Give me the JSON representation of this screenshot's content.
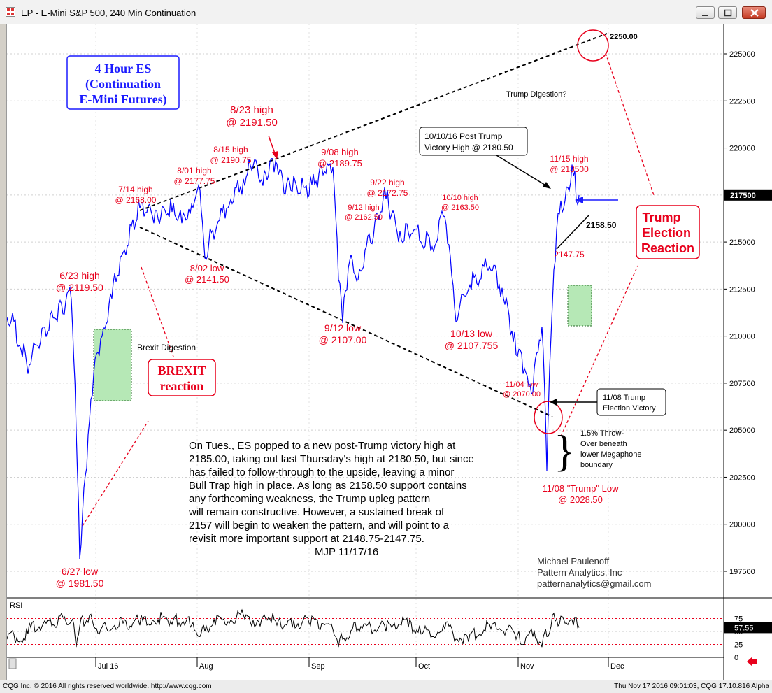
{
  "window": {
    "title": "EP - E-Mini S&P 500, 240 Min Continuation"
  },
  "status": {
    "left": "CQG Inc. © 2016 All rights reserved worldwide. http://www.cqg.com",
    "right": "Thu Nov 17 2016 09:01:03, CQG 17.10.816 Alpha"
  },
  "colors": {
    "price_line": "#0000ff",
    "annotation_red": "#e8001c",
    "rsi_line": "#000000",
    "highlight_box": "#b6e8b6"
  },
  "chart_data": [
    {
      "type": "line",
      "price_axis": {
        "ticks": [
          "197500",
          "200000",
          "202500",
          "205000",
          "207500",
          "210000",
          "212500",
          "215000",
          "217500",
          "220000",
          "222500",
          "225000"
        ],
        "last_price": "217500",
        "ylim": [
          1955,
          2270
        ]
      },
      "x_axis": {
        "labels": [
          "Jul 16",
          "Aug",
          "Sep",
          "Oct",
          "Nov",
          "Dec"
        ]
      },
      "series": [
        {
          "x": [
            "6/06",
            "6/13",
            "6/17",
            "6/20",
            "6/23",
            "6/24",
            "6/27",
            "6/29",
            "7/01",
            "7/05",
            "7/08",
            "7/14",
            "7/18",
            "7/21",
            "7/26",
            "7/29",
            "8/01",
            "8/02",
            "8/04",
            "8/09",
            "8/12",
            "8/15",
            "8/17",
            "8/19",
            "8/23",
            "8/25",
            "8/29",
            "9/02",
            "9/08",
            "9/09",
            "9/12",
            "9/14",
            "9/19",
            "9/22",
            "9/26",
            "9/29",
            "10/03",
            "10/06",
            "10/10",
            "10/13",
            "10/17",
            "10/20",
            "10/25",
            "10/28",
            "11/01",
            "11/03",
            "11/04",
            "11/07",
            "11/08",
            "11/09",
            "11/10",
            "11/11",
            "11/14",
            "11/15",
            "11/16",
            "11/17"
          ],
          "values": [
            2110,
            2095,
            2080,
            2095,
            2119.5,
            2050,
            1981.5,
            2030,
            2080,
            2090,
            2120,
            2168,
            2160,
            2166,
            2160,
            2165,
            2177.75,
            2141.5,
            2155,
            2170,
            2180,
            2190.75,
            2182,
            2183,
            2191.5,
            2176,
            2177,
            2175,
            2189.75,
            2130,
            2107,
            2140,
            2130,
            2172.75,
            2150,
            2155,
            2150,
            2145,
            2163.5,
            2107.755,
            2125,
            2130,
            2135,
            2120,
            2090,
            2080,
            2070,
            2105,
            2028.5,
            2100,
            2140,
            2165,
            2172,
            2185,
            2170,
            2175
          ]
        }
      ],
      "annotations": [
        {
          "lines": [
            "6/23 high",
            "@ 2119.50"
          ]
        },
        {
          "lines": [
            "6/27 low",
            "@ 1981.50"
          ]
        },
        {
          "lines": [
            "7/14 high",
            "@ 2168.00"
          ]
        },
        {
          "lines": [
            "8/01 high",
            "@ 2177.75"
          ]
        },
        {
          "lines": [
            "8/15 high",
            "@ 2190.75"
          ]
        },
        {
          "lines": [
            "8/23 high",
            "@ 2191.50"
          ]
        },
        {
          "lines": [
            "9/08 high",
            "@ 2189.75"
          ]
        },
        {
          "lines": [
            "9/22 high",
            "@ 2172.75"
          ]
        },
        {
          "lines": [
            "9/12 high",
            "@ 2162.50"
          ]
        },
        {
          "lines": [
            "10/10 high",
            "@ 2163.50"
          ]
        },
        {
          "lines": [
            "8/02 low",
            "@ 2141.50"
          ]
        },
        {
          "lines": [
            "9/12 low",
            "@ 2107.00"
          ]
        },
        {
          "lines": [
            "10/13 low",
            "@ 2107.755"
          ]
        },
        {
          "lines": [
            "11/04 low",
            "@ 2070.00"
          ]
        },
        {
          "lines": [
            "11/15 high",
            "@ 218500"
          ]
        },
        {
          "lines": [
            "2147.75"
          ]
        },
        {
          "lines": [
            "11/08 \"Trump\" Low",
            "@ 2028.50"
          ]
        }
      ],
      "labels": {
        "title_box": [
          "4 Hour ES",
          "(Continuation",
          "E-Mini Futures)"
        ],
        "brexit_digestion": "Brexit Digestion",
        "brexit_reaction": [
          "BREXIT",
          "reaction"
        ],
        "trump_digestion": "Trump Digestion?",
        "trump_reaction": [
          "Trump",
          "Election",
          "Reaction"
        ],
        "victory_high_box": [
          "10/10/16 Post Trump",
          "Victory High @ 2180.50"
        ],
        "election_box": [
          "11/08 Trump",
          "Election Victory"
        ],
        "target_2250": "2250.00",
        "support_2158": "2158.50",
        "throw_over": [
          "1.5% Throw-",
          "Over beneath",
          "lower Megaphone",
          "boundary"
        ],
        "commentary": [
          "On Tues., ES popped to a new post-Trump victory high at",
          "2185.00, taking out last Thursday's high at 2180.50, but since",
          "has failed to follow-through to the upside, leaving a minor",
          "Bull Trap high in place. As long as 2158.50 support contains",
          "any forthcoming weakness, the Trump upleg pattern",
          "will remain constructive. However, a sustained break of",
          "2157 will begin to weaken the pattern, and will point to a",
          "revisit more important support at 2148.75-2147.75.",
          "MJP 11/17/16"
        ],
        "signature": [
          "Michael Paulenoff",
          "Pattern Analytics, Inc",
          "patternanalytics@gmail.com"
        ]
      }
    },
    {
      "type": "line",
      "name": "RSI",
      "ticks": [
        "75",
        "50",
        "25",
        "0"
      ],
      "last_value": "57.55",
      "ylim": [
        0,
        100
      ],
      "values": [
        35,
        30,
        45,
        55,
        70,
        20,
        60,
        72,
        60,
        45,
        55,
        62,
        70,
        64,
        66,
        58,
        40,
        50,
        62,
        66,
        74,
        68,
        60,
        72,
        62,
        60,
        58,
        66,
        54,
        20,
        35,
        40,
        55,
        50,
        64,
        58,
        45,
        40,
        55,
        35,
        30,
        45,
        55,
        50,
        35,
        25,
        40,
        20,
        40,
        60,
        70,
        64,
        66,
        62,
        58,
        57.55
      ]
    }
  ]
}
